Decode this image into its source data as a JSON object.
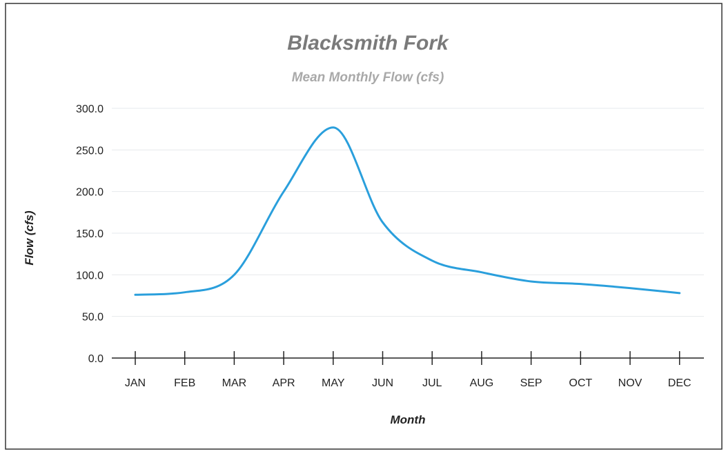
{
  "chart_data": {
    "type": "line",
    "title": "Blacksmith Fork",
    "subtitle": "Mean Monthly Flow (cfs)",
    "xlabel": "Month",
    "ylabel": "Flow (cfs)",
    "categories": [
      "JAN",
      "FEB",
      "MAR",
      "APR",
      "MAY",
      "JUN",
      "JUL",
      "AUG",
      "SEP",
      "OCT",
      "NOV",
      "DEC"
    ],
    "values": [
      76,
      79,
      100,
      200,
      277,
      163,
      117,
      103,
      92,
      89,
      84,
      78
    ],
    "ylim": [
      0,
      300
    ],
    "yticks": [
      "0.0",
      "50.0",
      "100.0",
      "150.0",
      "200.0",
      "250.0",
      "300.0"
    ],
    "grid": true,
    "legend": "none",
    "colors": {
      "line": "#2a9fdc",
      "title": "#7a7a7a",
      "subtitle": "#a9a9a9",
      "grid": "#e6e9ec",
      "axis": "#222222",
      "border": "#333333"
    }
  }
}
